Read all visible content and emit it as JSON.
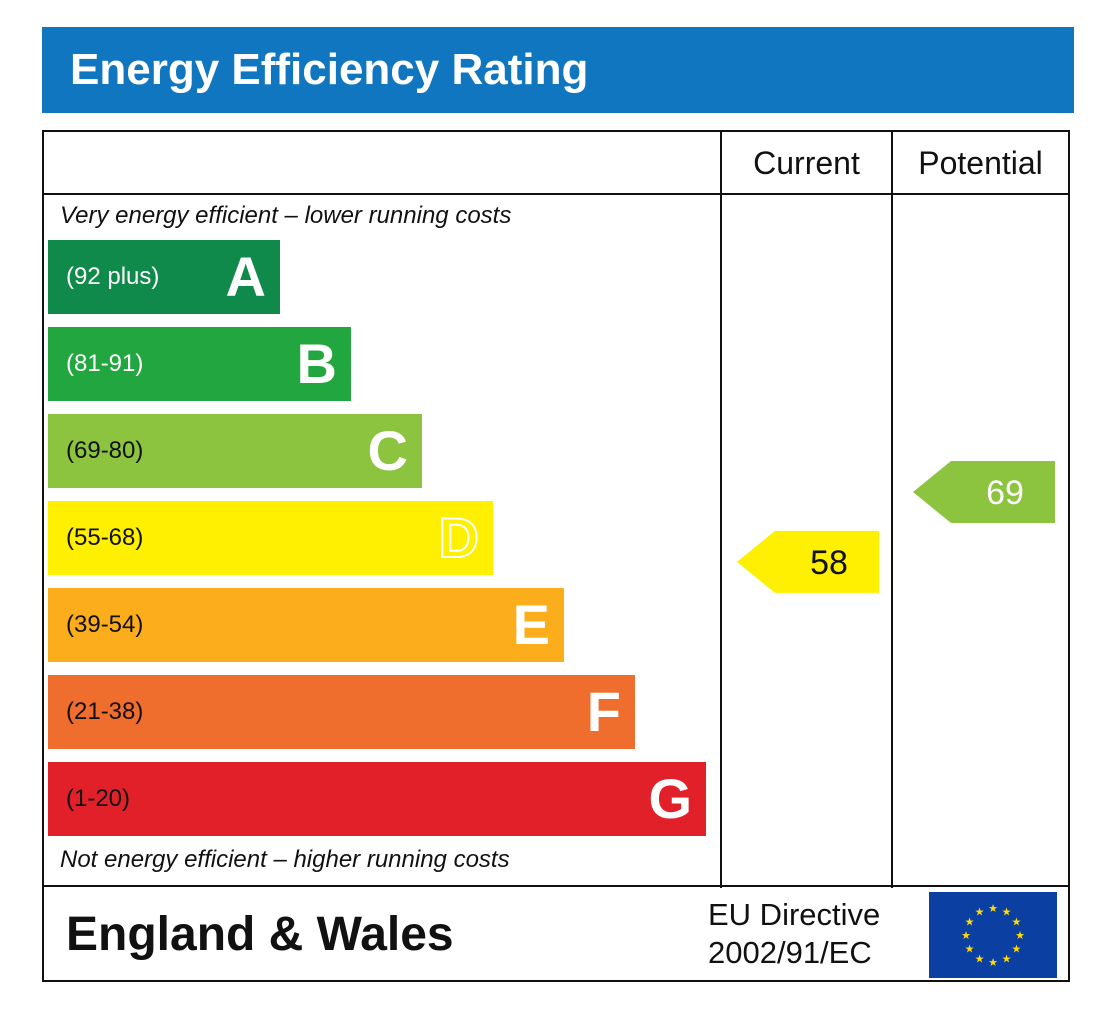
{
  "title": "Energy Efficiency Rating",
  "columns": {
    "current": "Current",
    "potential": "Potential"
  },
  "top_note": "Very energy efficient – lower running costs",
  "bottom_note": "Not energy efficient – higher running costs",
  "footer": {
    "region": "England & Wales",
    "directive_line1": "EU Directive",
    "directive_line2": "2002/91/EC"
  },
  "colors": {
    "title_bg": "#1176c0",
    "eu_blue": "#0b3fa2",
    "eu_star": "#ffdd00"
  },
  "chart_data": {
    "type": "bar",
    "bands": [
      {
        "letter": "A",
        "range": "(92 plus)",
        "color": "#0f8a4a",
        "text_color": "#ffffff"
      },
      {
        "letter": "B",
        "range": "(81-91)",
        "color": "#22a640",
        "text_color": "#ffffff"
      },
      {
        "letter": "C",
        "range": "(69-80)",
        "color": "#8cc43f",
        "text_color": "#ffffff"
      },
      {
        "letter": "D",
        "range": "(55-68)",
        "color": "#ffef00",
        "text_color": "#ffffff"
      },
      {
        "letter": "E",
        "range": "(39-54)",
        "color": "#fcad1b",
        "text_color": "#ffffff"
      },
      {
        "letter": "F",
        "range": "(21-38)",
        "color": "#ef6d2d",
        "text_color": "#ffffff"
      },
      {
        "letter": "G",
        "range": "(1-20)",
        "color": "#e2202a",
        "text_color": "#ffffff"
      }
    ],
    "series": [
      {
        "name": "Current",
        "value": 58,
        "band": "D",
        "color": "#ffef00",
        "text_color": "#111111"
      },
      {
        "name": "Potential",
        "value": 69,
        "band": "C",
        "color": "#8cc43f",
        "text_color": "#ffffff"
      }
    ]
  }
}
